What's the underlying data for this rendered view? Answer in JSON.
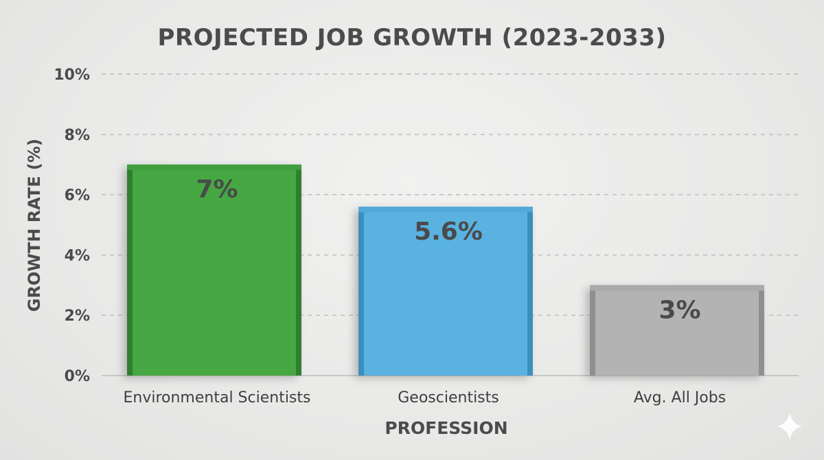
{
  "chart_data": {
    "type": "bar",
    "title": "PROJECTED JOB GROWTH (2023-2033)",
    "xlabel": "PROFESSION",
    "ylabel": "GROWTH RATE (%)",
    "categories": [
      "Environmental Scientists",
      "Geoscientists",
      "Avg. All Jobs"
    ],
    "values": [
      7,
      5.6,
      3
    ],
    "data_labels": [
      "7%",
      "5.6%",
      "3%"
    ],
    "ylim": [
      0,
      10
    ],
    "yticks": [
      0,
      2,
      4,
      6,
      8,
      10
    ],
    "ytick_labels": [
      "0%",
      "2%",
      "4%",
      "6%",
      "8%",
      "10%"
    ],
    "grid": true,
    "colors": [
      "#45a843",
      "#5ab2e0",
      "#b3b3b3"
    ],
    "edge_colors": [
      "#2f7f2d",
      "#3a8fbd",
      "#8f8f8f"
    ]
  }
}
